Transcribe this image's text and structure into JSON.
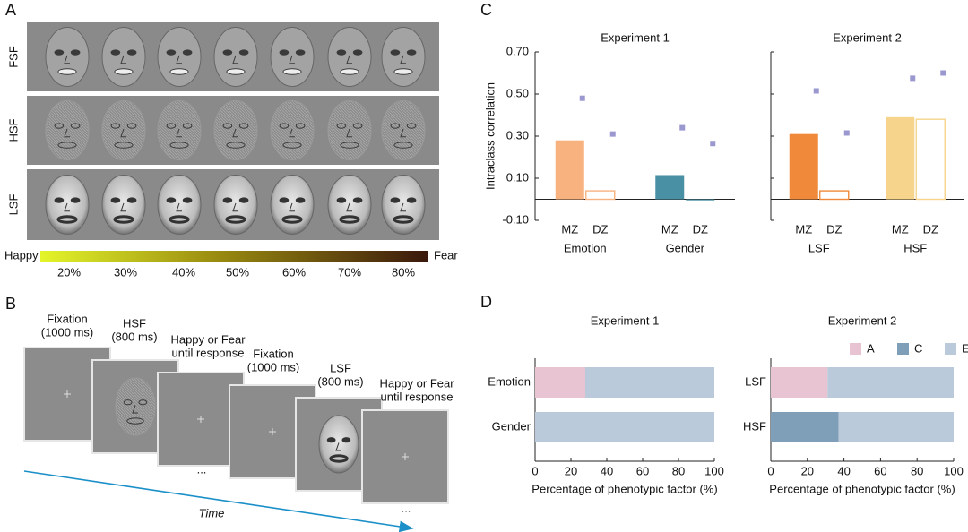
{
  "panel_labels": [
    "A",
    "B",
    "C",
    "D"
  ],
  "panel_a": {
    "rows": [
      "FSF",
      "HSF",
      "LSF"
    ],
    "scale_start": "Happy",
    "scale_end": "Fear",
    "scale_ticks": [
      "20%",
      "30%",
      "40%",
      "50%",
      "60%",
      "70%",
      "80%"
    ]
  },
  "panel_b": {
    "steps": [
      [
        "Fixation",
        "(1000 ms)"
      ],
      [
        "HSF",
        "(800 ms)"
      ],
      [
        "Happy or Fear",
        "until response"
      ],
      [
        "Fixation",
        "(1000 ms)"
      ],
      [
        "LSF",
        "(800 ms)"
      ],
      [
        "Happy or Fear",
        "until response"
      ]
    ],
    "time": "Time",
    "ellipsis": "..."
  },
  "chart_data": [
    {
      "type": "bar",
      "title": "Experiment 1",
      "ylabel": "Intraclass correlation",
      "groups": [
        "Emotion",
        "Gender"
      ],
      "categories": [
        "MZ",
        "DZ",
        "MZ",
        "DZ"
      ],
      "values": [
        0.28,
        0.04,
        0.115,
        -0.005
      ],
      "colors": [
        "#f8b27f",
        "#f8b27f",
        "#4a90a4",
        "#4a90a4"
      ],
      "filled": [
        true,
        false,
        true,
        true
      ],
      "points": [
        0.48,
        0.31,
        0.34,
        0.265
      ],
      "point_color": "#9b98d0",
      "ylim": [
        -0.1,
        0.7
      ],
      "tick_labels": true,
      "yticks": [
        {
          "value": -0.1,
          "label": "-0.10"
        },
        {
          "value": 0.1,
          "label": "0.10"
        },
        {
          "value": 0.3,
          "label": "0.30"
        },
        {
          "value": 0.5,
          "label": "0.50"
        },
        {
          "value": 0.7,
          "label": "0.70"
        }
      ]
    },
    {
      "type": "bar",
      "title": "Experiment 2",
      "groups": [
        "LSF",
        "HSF"
      ],
      "categories": [
        "MZ",
        "DZ",
        "MZ",
        "DZ"
      ],
      "values": [
        0.31,
        0.04,
        0.39,
        0.38
      ],
      "colors": [
        "#f08a3a",
        "#f08a3a",
        "#f6d48c",
        "#f6d48c"
      ],
      "filled": [
        true,
        false,
        true,
        false
      ],
      "points": [
        0.515,
        0.315,
        0.575,
        0.6
      ],
      "point_color": "#9b98d0",
      "ylim": [
        -0.1,
        0.7
      ],
      "tick_labels": false,
      "yticks": [
        -0.1,
        0.1,
        0.3,
        0.5,
        0.7
      ]
    },
    {
      "type": "barh",
      "title": "Experiment 1",
      "xlabel": "Percentage of phenotypic factor (%)",
      "categories": [
        "Emotion",
        "Gender"
      ],
      "legend": false,
      "series": [
        {
          "name": "A",
          "color": "#e8c4d2",
          "values": [
            28,
            0
          ]
        },
        {
          "name": "C",
          "color": "#7f9fb9",
          "values": [
            0,
            0
          ]
        },
        {
          "name": "E",
          "color": "#bacada",
          "values": [
            72,
            100
          ]
        }
      ],
      "xlim": [
        0,
        100
      ],
      "xticks": [
        0,
        20,
        40,
        60,
        80,
        100
      ]
    },
    {
      "type": "barh",
      "title": "Experiment 2",
      "xlabel": "Percentage of phenotypic factor (%)",
      "categories": [
        "LSF",
        "HSF"
      ],
      "legend": "upper right",
      "series": [
        {
          "name": "A",
          "color": "#e8c4d2",
          "values": [
            31,
            0
          ]
        },
        {
          "name": "C",
          "color": "#7f9fb9",
          "values": [
            0,
            37
          ]
        },
        {
          "name": "E",
          "color": "#bacada",
          "values": [
            69,
            63
          ]
        }
      ],
      "xlim": [
        0,
        100
      ],
      "xticks": [
        0,
        20,
        40,
        60,
        80,
        100
      ]
    }
  ]
}
